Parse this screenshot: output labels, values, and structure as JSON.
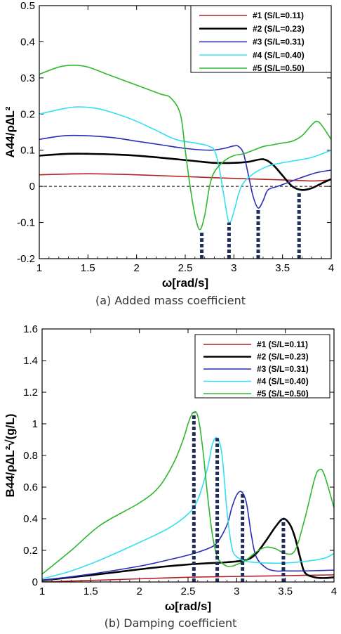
{
  "chart_data": [
    {
      "type": "line",
      "caption": "(a) Added mass coefficient",
      "xlabel": "ω[rad/s]",
      "ylabel": "A44/ρ∆L²",
      "xlim": [
        1,
        4
      ],
      "ylim": [
        -0.2,
        0.5
      ],
      "xticks": [
        "1",
        "1.5",
        "2",
        "2.5",
        "3",
        "3.5",
        "4"
      ],
      "yticks": [
        "-0.2",
        "-0.1",
        "0",
        "0.1",
        "0.2",
        "0.3",
        "0.4",
        "0.5"
      ],
      "reference_line": 0,
      "legend_position": "top-right",
      "series": [
        {
          "name": "#1 (S/L=0.11)",
          "color": "#b22222",
          "x": [
            1.0,
            1.5,
            2.0,
            2.5,
            3.0,
            3.5,
            3.8,
            4.0
          ],
          "y": [
            0.032,
            0.035,
            0.032,
            0.027,
            0.022,
            0.018,
            0.015,
            0.018
          ]
        },
        {
          "name": "#2 (S/L=0.23)",
          "color": "#000000",
          "x": [
            1.0,
            1.3,
            1.5,
            1.8,
            2.0,
            2.3,
            2.6,
            2.8,
            3.0,
            3.15,
            3.3,
            3.4,
            3.5,
            3.6,
            3.7,
            3.8,
            3.9,
            4.0
          ],
          "y": [
            0.085,
            0.09,
            0.09,
            0.088,
            0.085,
            0.078,
            0.07,
            0.065,
            0.065,
            0.068,
            0.075,
            0.06,
            0.03,
            0.0,
            -0.01,
            -0.005,
            0.008,
            0.02
          ]
        },
        {
          "name": "#3 (S/L=0.31)",
          "color": "#2b2bb8",
          "x": [
            1.0,
            1.25,
            1.5,
            1.75,
            2.0,
            2.25,
            2.5,
            2.75,
            2.9,
            3.0,
            3.05,
            3.1,
            3.15,
            3.2,
            3.25,
            3.3,
            3.35,
            3.45,
            3.55,
            3.7,
            3.85,
            4.0
          ],
          "y": [
            0.13,
            0.14,
            0.14,
            0.135,
            0.125,
            0.115,
            0.105,
            0.1,
            0.105,
            0.112,
            0.11,
            0.09,
            0.03,
            -0.03,
            -0.06,
            -0.04,
            -0.01,
            0.0,
            0.01,
            0.025,
            0.038,
            0.045
          ]
        },
        {
          "name": "#4 (S/L=0.40)",
          "color": "#33e0f0",
          "x": [
            1.0,
            1.25,
            1.4,
            1.6,
            1.8,
            2.0,
            2.2,
            2.4,
            2.6,
            2.7,
            2.75,
            2.8,
            2.85,
            2.9,
            2.95,
            3.0,
            3.05,
            3.1,
            3.2,
            3.3,
            3.4,
            3.6,
            3.8,
            4.0
          ],
          "y": [
            0.2,
            0.215,
            0.22,
            0.215,
            0.2,
            0.18,
            0.155,
            0.13,
            0.12,
            0.115,
            0.11,
            0.1,
            0.05,
            -0.03,
            -0.1,
            -0.07,
            -0.02,
            0.01,
            0.035,
            0.05,
            0.06,
            0.07,
            0.08,
            0.1
          ]
        },
        {
          "name": "#5 (S/L=0.50)",
          "color": "#2db82d",
          "x": [
            1.0,
            1.2,
            1.35,
            1.5,
            1.7,
            1.9,
            2.1,
            2.25,
            2.35,
            2.45,
            2.5,
            2.55,
            2.6,
            2.65,
            2.7,
            2.75,
            2.8,
            2.9,
            3.0,
            3.1,
            3.2,
            3.3,
            3.4,
            3.5,
            3.6,
            3.7,
            3.8,
            3.85,
            3.9,
            4.0
          ],
          "y": [
            0.31,
            0.33,
            0.335,
            0.33,
            0.31,
            0.29,
            0.27,
            0.255,
            0.245,
            0.2,
            0.1,
            0.0,
            -0.08,
            -0.12,
            -0.08,
            0.0,
            0.04,
            0.07,
            0.085,
            0.09,
            0.1,
            0.11,
            0.115,
            0.12,
            0.125,
            0.14,
            0.17,
            0.18,
            0.17,
            0.13
          ]
        }
      ],
      "marker_lines": [
        {
          "x": 2.67,
          "y": -0.125
        },
        {
          "x": 2.95,
          "y": -0.1
        },
        {
          "x": 3.25,
          "y": -0.06
        },
        {
          "x": 3.67,
          "y": -0.015
        }
      ]
    },
    {
      "type": "line",
      "caption": "(b) Damping coefficient",
      "xlabel": "ω[rad/s]",
      "ylabel": "B44/ρ∆L²√(g/L)",
      "xlim": [
        1,
        4
      ],
      "ylim": [
        0,
        1.6
      ],
      "xticks": [
        "1",
        "1.5",
        "2",
        "2.5",
        "3",
        "3.5",
        "4"
      ],
      "yticks": [
        "0",
        "0.2",
        "0.4",
        "0.6",
        "0.8",
        "1",
        "1.2",
        "1.4",
        "1.6"
      ],
      "legend_position": "top-right",
      "series": [
        {
          "name": "#1 (S/L=0.11)",
          "color": "#b22222",
          "x": [
            1.0,
            1.5,
            2.0,
            2.5,
            3.0,
            3.5,
            4.0
          ],
          "y": [
            0.0,
            0.01,
            0.02,
            0.03,
            0.035,
            0.04,
            0.045
          ]
        },
        {
          "name": "#2 (S/L=0.23)",
          "color": "#000000",
          "x": [
            1.0,
            1.3,
            1.6,
            2.0,
            2.3,
            2.6,
            2.9,
            3.1,
            3.2,
            3.3,
            3.4,
            3.48,
            3.55,
            3.6,
            3.65,
            3.7,
            3.8,
            3.9,
            4.0
          ],
          "y": [
            0.01,
            0.03,
            0.05,
            0.08,
            0.1,
            0.115,
            0.125,
            0.14,
            0.18,
            0.26,
            0.35,
            0.4,
            0.36,
            0.28,
            0.16,
            0.06,
            0.03,
            0.025,
            0.03
          ]
        },
        {
          "name": "#3 (S/L=0.31)",
          "color": "#2b2bb8",
          "x": [
            1.0,
            1.5,
            2.0,
            2.3,
            2.5,
            2.7,
            2.8,
            2.9,
            2.95,
            3.0,
            3.05,
            3.1,
            3.15,
            3.2,
            3.3,
            3.4,
            3.5,
            3.7,
            4.0
          ],
          "y": [
            0.01,
            0.05,
            0.1,
            0.14,
            0.17,
            0.21,
            0.25,
            0.36,
            0.47,
            0.55,
            0.57,
            0.5,
            0.3,
            0.16,
            0.09,
            0.07,
            0.07,
            0.07,
            0.075
          ]
        },
        {
          "name": "#4 (S/L=0.40)",
          "color": "#33e0f0",
          "x": [
            1.0,
            1.3,
            1.6,
            2.0,
            2.3,
            2.5,
            2.6,
            2.7,
            2.75,
            2.8,
            2.85,
            2.9,
            2.95,
            3.0,
            3.1,
            3.3,
            3.5,
            3.7,
            3.9,
            4.0
          ],
          "y": [
            0.02,
            0.07,
            0.14,
            0.25,
            0.34,
            0.43,
            0.52,
            0.72,
            0.87,
            0.91,
            0.8,
            0.45,
            0.22,
            0.16,
            0.13,
            0.12,
            0.12,
            0.13,
            0.15,
            0.18
          ]
        },
        {
          "name": "#5 (S/L=0.50)",
          "color": "#2db82d",
          "x": [
            1.0,
            1.3,
            1.6,
            2.0,
            2.2,
            2.35,
            2.45,
            2.5,
            2.55,
            2.6,
            2.65,
            2.7,
            2.75,
            2.8,
            2.85,
            2.9,
            2.95,
            3.0,
            3.1,
            3.2,
            3.3,
            3.4,
            3.5,
            3.6,
            3.7,
            3.8,
            3.85,
            3.9,
            4.0
          ],
          "y": [
            0.05,
            0.2,
            0.36,
            0.5,
            0.6,
            0.75,
            0.9,
            1.0,
            1.07,
            1.05,
            0.85,
            0.55,
            0.3,
            0.16,
            0.12,
            0.1,
            0.1,
            0.11,
            0.14,
            0.19,
            0.22,
            0.21,
            0.18,
            0.2,
            0.4,
            0.65,
            0.71,
            0.68,
            0.47
          ]
        }
      ],
      "marker_lines": [
        {
          "x": 2.56,
          "y": 1.07
        },
        {
          "x": 2.8,
          "y": 0.91
        },
        {
          "x": 3.06,
          "y": 0.57
        },
        {
          "x": 3.48,
          "y": 0.4
        }
      ]
    }
  ]
}
